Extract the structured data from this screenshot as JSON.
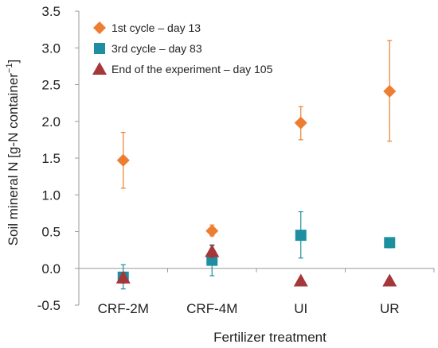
{
  "chart_data": {
    "type": "scatter",
    "xlabel": "Fertilizer treatment",
    "ylabel": "Soil mineral N [g-N container",
    "ylabel_superscript": "−1",
    "ylabel_close": "]",
    "categories": [
      "CRF-2M",
      "CRF-4M",
      "UI",
      "UR"
    ],
    "ylim": [
      -0.5,
      3.5
    ],
    "yticks": [
      -0.5,
      0.0,
      0.5,
      1.0,
      1.5,
      2.0,
      2.5,
      3.0,
      3.5
    ],
    "ytick_labels": [
      "-0.5",
      "0.0",
      "0.5",
      "1.0",
      "1.5",
      "2.0",
      "2.5",
      "3.0",
      "3.5"
    ],
    "grid": false,
    "legend_position": "top-left",
    "series": [
      {
        "name": "1st cycle – day 13",
        "marker": "diamond",
        "color": "#ED7D31",
        "values": [
          1.47,
          0.51,
          1.98,
          2.41
        ],
        "err_low": [
          1.09,
          0.44,
          1.75,
          1.73
        ],
        "err_high": [
          1.85,
          0.59,
          2.2,
          3.1
        ]
      },
      {
        "name": "3rd cycle – day 83",
        "marker": "square",
        "color": "#1E8FA0",
        "values": [
          -0.12,
          0.11,
          0.45,
          0.35
        ],
        "err_low": [
          -0.28,
          -0.1,
          0.14,
          0.28
        ],
        "err_high": [
          0.05,
          0.32,
          0.77,
          0.41
        ]
      },
      {
        "name": "End of the experiment – day 105",
        "marker": "triangle",
        "color": "#A4373A",
        "values": [
          -0.13,
          0.23,
          -0.17,
          -0.17
        ],
        "err_low": [
          -0.2,
          0.15,
          -0.2,
          -0.2
        ],
        "err_high": [
          -0.06,
          0.31,
          -0.14,
          -0.14
        ]
      }
    ]
  }
}
